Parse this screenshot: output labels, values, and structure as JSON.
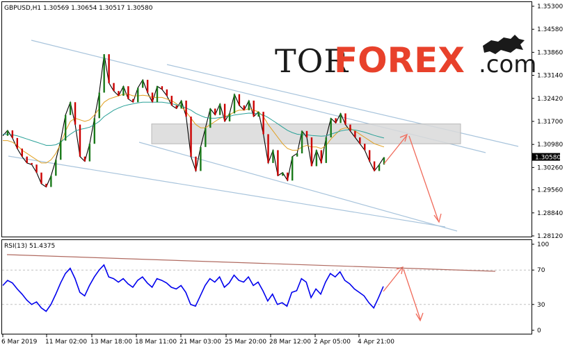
{
  "chart_header": "GBPUSD,H1  1.30569 1.30654 1.30517 1.30580",
  "rsi_header": "RSI(13) 51.4375",
  "brand": {
    "part1": "TOR",
    "part2": "FOREX",
    "part3": ".com",
    "accent": "#e8412b"
  },
  "current_price_label": "1.30580",
  "chart_data": [
    {
      "type": "line",
      "title": "GBPUSD,H1",
      "ylim": [
        1.2812,
        1.353
      ],
      "y_ticks": [
        "1.35300",
        "1.34580",
        "1.33860",
        "1.33140",
        "1.32420",
        "1.31700",
        "1.30980",
        "1.30260",
        "1.29560",
        "1.28840",
        "1.28120"
      ],
      "x_ticks": [
        "6 Mar 2019",
        "11 Mar 02:00",
        "13 Mar 18:00",
        "18 Mar 11:00",
        "21 Mar 03:00",
        "25 Mar 20:00",
        "28 Mar 12:00",
        "2 Apr 05:00",
        "4 Apr 21:00"
      ],
      "series": [
        {
          "values": [
            1.3125,
            1.3142,
            1.3118,
            1.3085,
            1.306,
            1.304,
            1.3035,
            1.301,
            1.2975,
            1.2965,
            1.3,
            1.305,
            1.311,
            1.319,
            1.323,
            1.316,
            1.306,
            1.3045,
            1.31,
            1.318,
            1.326,
            1.338,
            1.329,
            1.3265,
            1.325,
            1.328,
            1.324,
            1.323,
            1.3275,
            1.33,
            1.326,
            1.323,
            1.328,
            1.327,
            1.325,
            1.322,
            1.321,
            1.3235,
            1.3185,
            1.306,
            1.3015,
            1.309,
            1.315,
            1.321,
            1.319,
            1.3225,
            1.317,
            1.3195,
            1.3255,
            1.322,
            1.3205,
            1.3235,
            1.3185,
            1.32,
            1.313,
            1.304,
            1.308,
            1.3,
            1.301,
            1.2985,
            1.306,
            1.307,
            1.314,
            1.312,
            1.303,
            1.308,
            1.304,
            1.312,
            1.318,
            1.3165,
            1.3195,
            1.316,
            1.314,
            1.312,
            1.31,
            1.308,
            1.3045,
            1.3015,
            1.3035,
            1.3058
          ]
        },
        {
          "name": "",
          "color": "#e0a020",
          "values": [
            1.311,
            1.311,
            1.3105,
            1.3095,
            1.308,
            1.307,
            1.306,
            1.305,
            1.304,
            1.304,
            1.305,
            1.307,
            1.31,
            1.314,
            1.317,
            1.318,
            1.3175,
            1.317,
            1.3175,
            1.319,
            1.321,
            1.323,
            1.324,
            1.3245,
            1.325,
            1.3255,
            1.3255,
            1.325,
            1.325,
            1.3252,
            1.325,
            1.3245,
            1.3245,
            1.3245,
            1.324,
            1.3235,
            1.3225,
            1.3215,
            1.32,
            1.318,
            1.316,
            1.315,
            1.315,
            1.316,
            1.317,
            1.318,
            1.3185,
            1.319,
            1.32,
            1.3205,
            1.3205,
            1.321,
            1.3205,
            1.32,
            1.3185,
            1.316,
            1.314,
            1.312,
            1.31,
            1.3085,
            1.308,
            1.308,
            1.309,
            1.3095,
            1.309,
            1.309,
            1.3085,
            1.3095,
            1.3115,
            1.313,
            1.3145,
            1.315,
            1.3148,
            1.314,
            1.313,
            1.312,
            1.311,
            1.31,
            1.3095,
            1.309
          ]
        },
        {
          "name": "",
          "color": "#2aa198",
          "values": [
            1.313,
            1.313,
            1.3128,
            1.3125,
            1.312,
            1.3115,
            1.311,
            1.3105,
            1.31,
            1.3095,
            1.3095,
            1.3097,
            1.3105,
            1.3118,
            1.313,
            1.314,
            1.3145,
            1.3148,
            1.3152,
            1.316,
            1.317,
            1.3185,
            1.3195,
            1.3205,
            1.3212,
            1.3218,
            1.3222,
            1.3225,
            1.3228,
            1.323,
            1.323,
            1.323,
            1.323,
            1.323,
            1.3228,
            1.3225,
            1.3222,
            1.3218,
            1.3212,
            1.3205,
            1.3195,
            1.3188,
            1.3182,
            1.318,
            1.318,
            1.3182,
            1.3184,
            1.3186,
            1.319,
            1.3192,
            1.3194,
            1.3196,
            1.3195,
            1.3194,
            1.319,
            1.3182,
            1.3172,
            1.3162,
            1.3152,
            1.3142,
            1.3135,
            1.313,
            1.3128,
            1.3128,
            1.3126,
            1.3125,
            1.3124,
            1.3125,
            1.313,
            1.3135,
            1.314,
            1.3143,
            1.3144,
            1.3143,
            1.314,
            1.3136,
            1.3131,
            1.3126,
            1.3122,
            1.3118
          ]
        }
      ],
      "support_resistance_zone": [
        1.31,
        1.3162
      ]
    },
    {
      "type": "line",
      "title": "RSI(13) 51.4375",
      "ylim": [
        0,
        100
      ],
      "y_ticks": [
        "100",
        "70",
        "30",
        "0"
      ],
      "series": [
        {
          "name": "RSI(13)",
          "color": "#0000ee",
          "values": [
            52,
            58,
            55,
            48,
            42,
            35,
            30,
            33,
            26,
            22,
            30,
            42,
            55,
            66,
            72,
            60,
            44,
            40,
            52,
            62,
            70,
            76,
            62,
            60,
            56,
            60,
            54,
            50,
            58,
            62,
            55,
            50,
            60,
            58,
            55,
            50,
            48,
            52,
            44,
            30,
            28,
            40,
            52,
            60,
            56,
            62,
            50,
            55,
            64,
            58,
            56,
            62,
            52,
            56,
            46,
            34,
            42,
            30,
            32,
            28,
            44,
            46,
            60,
            56,
            38,
            48,
            42,
            56,
            66,
            62,
            68,
            58,
            54,
            48,
            44,
            40,
            32,
            26,
            38,
            51
          ]
        }
      ]
    }
  ]
}
